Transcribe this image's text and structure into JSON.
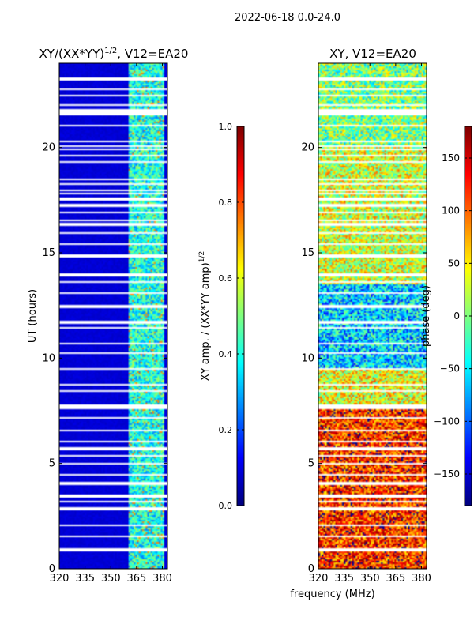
{
  "figure": {
    "suptitle": "2022-06-18 0.0-24.0",
    "shared_xlabel": "frequency (MHz)"
  },
  "colormap": {
    "name": "jet",
    "stops": [
      "#00007f",
      "#0000ff",
      "#007fff",
      "#00ffff",
      "#7fff7f",
      "#ffff00",
      "#ff7f00",
      "#ff0000",
      "#7f0000"
    ]
  },
  "chart_data": [
    {
      "type": "heatmap",
      "title": "XY/(XX*YY)^{1/2}, V12=EA20",
      "title_main": "XY/(XX*YY)",
      "title_exp": "1/2",
      "title_tail": ", V12=EA20",
      "xlabel": "",
      "ylabel": "UT (hours)",
      "xlim": [
        320,
        383
      ],
      "ylim": [
        0,
        24
      ],
      "x_ticks": [
        320,
        335,
        350,
        365,
        380
      ],
      "y_ticks": [
        0,
        5,
        10,
        15,
        20
      ],
      "x_tick_labels": [
        "320",
        "335",
        "350",
        "365",
        "380"
      ],
      "y_tick_labels": [
        "0",
        "5",
        "10",
        "15",
        "20"
      ],
      "colorbar": {
        "label": "XY amp. / (XX*YY amp)^{1/2}",
        "label_main": "XY amp. / (XX*YY amp)",
        "label_exp": "1/2",
        "range": [
          0.0,
          1.0
        ],
        "ticks": [
          0.0,
          0.2,
          0.4,
          0.6,
          0.8,
          1.0
        ],
        "tick_labels": [
          "0.0",
          "0.2",
          "0.4",
          "0.6",
          "0.8",
          "1.0"
        ]
      },
      "value_pattern": {
        "background_value": 0.07,
        "bright_freq_range_mhz": [
          360,
          381
        ],
        "bright_value_range": [
          0.25,
          0.55
        ],
        "peak_value": 0.75
      }
    },
    {
      "type": "heatmap",
      "title": "XY, V12=EA20",
      "xlabel": "frequency (MHz)",
      "ylabel": "",
      "xlim": [
        320,
        383
      ],
      "ylim": [
        0,
        24
      ],
      "x_ticks": [
        320,
        335,
        350,
        365,
        380
      ],
      "y_ticks": [
        0,
        5,
        10,
        15,
        20
      ],
      "x_tick_labels": [
        "320",
        "335",
        "350",
        "365",
        "380"
      ],
      "y_tick_labels": [
        "0",
        "5",
        "10",
        "15",
        "20"
      ],
      "colorbar": {
        "label": "phase (deg)",
        "range": [
          -180,
          180
        ],
        "ticks": [
          -150,
          -100,
          -50,
          0,
          50,
          100,
          150
        ],
        "tick_labels": [
          "−150",
          "−100",
          "−50",
          "0",
          "50",
          "100",
          "150"
        ]
      },
      "value_pattern": {
        "phase_bands_deg": [
          {
            "ut_range": [
              0,
              7.7
            ],
            "phase": 120
          },
          {
            "ut_range": [
              7.7,
              9.5
            ],
            "phase": 40
          },
          {
            "ut_range": [
              9.5,
              13.5
            ],
            "phase": -60
          },
          {
            "ut_range": [
              13.5,
              20
            ],
            "phase": 30
          },
          {
            "ut_range": [
              20,
              24
            ],
            "phase": 0
          }
        ]
      }
    }
  ],
  "gaps_ut_hours": [
    0.9,
    1.55,
    2.05,
    2.85,
    3.2,
    3.45,
    4.05,
    4.45,
    5.0,
    5.35,
    5.7,
    6.05,
    6.55,
    7.15,
    7.65,
    7.75,
    8.45,
    8.75,
    9.5,
    10.25,
    10.7,
    11.45,
    11.7,
    12.45,
    13.1,
    13.6,
    13.95,
    14.85,
    15.4,
    15.95,
    16.35,
    16.55,
    16.9,
    17.25,
    17.55,
    17.8,
    17.95,
    18.25,
    18.5,
    19.3,
    19.6,
    19.9,
    20.05,
    20.3,
    21.05,
    21.6,
    21.75,
    22.0,
    22.45,
    22.75,
    23.25
  ]
}
